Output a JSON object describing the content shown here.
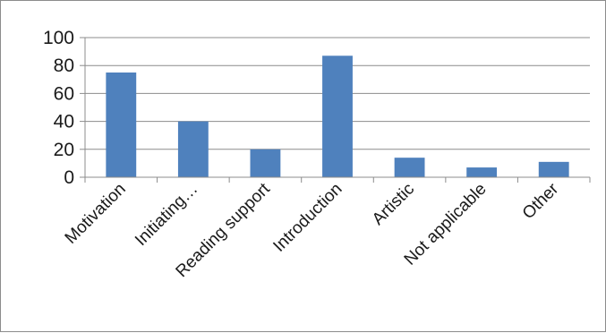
{
  "chart_data": {
    "type": "bar",
    "categories": [
      "Motivation",
      "Initiating…",
      "Reading support",
      "Introduction",
      "Artistic",
      "Not applicable",
      "Other"
    ],
    "values": [
      75,
      40,
      20,
      87,
      14,
      7,
      11
    ],
    "title": "",
    "xlabel": "",
    "ylabel": "",
    "ylim": [
      0,
      100
    ],
    "yticks": [
      0,
      20,
      40,
      60,
      80,
      100
    ],
    "grid": true,
    "legend": "none",
    "colors": {
      "bar": "#4f81bd",
      "gridline": "#8c8c8c",
      "axis": "#8c8c8c"
    }
  }
}
